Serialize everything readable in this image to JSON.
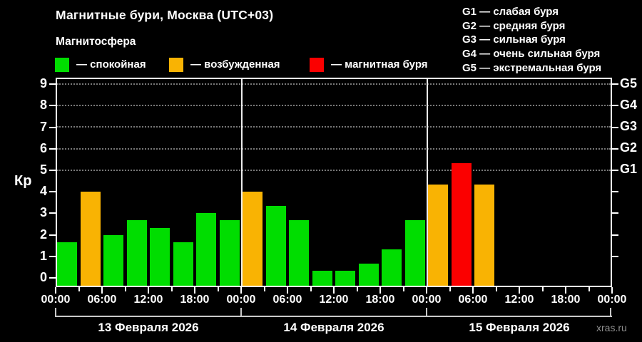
{
  "header": {
    "title": "Магнитные бури, Москва (UTC+03)",
    "subtitle": "Магнитосфера"
  },
  "legend": {
    "items": [
      {
        "label": "— спокойная",
        "status": "quiet",
        "color": "#00dd00"
      },
      {
        "label": "— возбужденная",
        "status": "excited",
        "color": "#f9b303"
      },
      {
        "label": "— магнитная буря",
        "status": "storm",
        "color": "#fb0000"
      }
    ]
  },
  "g_scale_legend": {
    "lines": [
      "G1 — слабая буря",
      "G2 — средняя буря",
      "G3 — сильная буря",
      "G4 — очень сильная буря",
      "G5 — экстремальная буря"
    ]
  },
  "watermark": "xras.ru",
  "chart_data": {
    "type": "bar",
    "title": "Магнитные бури, Москва (UTC+03)",
    "ylabel": "Кр",
    "ylim": [
      0,
      9
    ],
    "y_ticks": [
      0,
      1,
      2,
      3,
      4,
      5,
      6,
      7,
      8,
      9
    ],
    "grid_levels": [
      5,
      6,
      7,
      8,
      9
    ],
    "grid": "dotted horizontal lines at storm levels G1–G5",
    "legend_position": "top",
    "right_axis": [
      {
        "label": "G1",
        "value": 5
      },
      {
        "label": "G2",
        "value": 6
      },
      {
        "label": "G3",
        "value": 7
      },
      {
        "label": "G4",
        "value": 8
      },
      {
        "label": "G5",
        "value": 9
      }
    ],
    "x_time_labels": [
      "00:00",
      "06:00",
      "12:00",
      "18:00",
      "00:00",
      "06:00",
      "12:00",
      "18:00",
      "00:00",
      "06:00",
      "12:00",
      "18:00",
      "00:00"
    ],
    "bar_interval_hours": 3,
    "status_colors": {
      "quiet": "#00dd00",
      "excited": "#f9b303",
      "storm": "#fb0000"
    },
    "days": [
      {
        "date": "13 Февраля 2026",
        "kp": [
          1.67,
          4.0,
          2.0,
          2.67,
          2.33,
          1.67,
          3.0,
          2.67
        ],
        "status": [
          "quiet",
          "excited",
          "quiet",
          "quiet",
          "quiet",
          "quiet",
          "quiet",
          "quiet"
        ]
      },
      {
        "date": "14 Февраля 2026",
        "kp": [
          4.0,
          3.33,
          2.67,
          0.33,
          0.33,
          0.67,
          1.33,
          2.67
        ],
        "status": [
          "excited",
          "quiet",
          "quiet",
          "quiet",
          "quiet",
          "quiet",
          "quiet",
          "quiet"
        ]
      },
      {
        "date": "15 Февраля 2026",
        "kp": [
          4.33,
          5.33,
          4.33,
          null,
          null,
          null,
          null,
          null
        ],
        "status": [
          "excited",
          "storm",
          "excited",
          null,
          null,
          null,
          null,
          null
        ]
      }
    ]
  }
}
